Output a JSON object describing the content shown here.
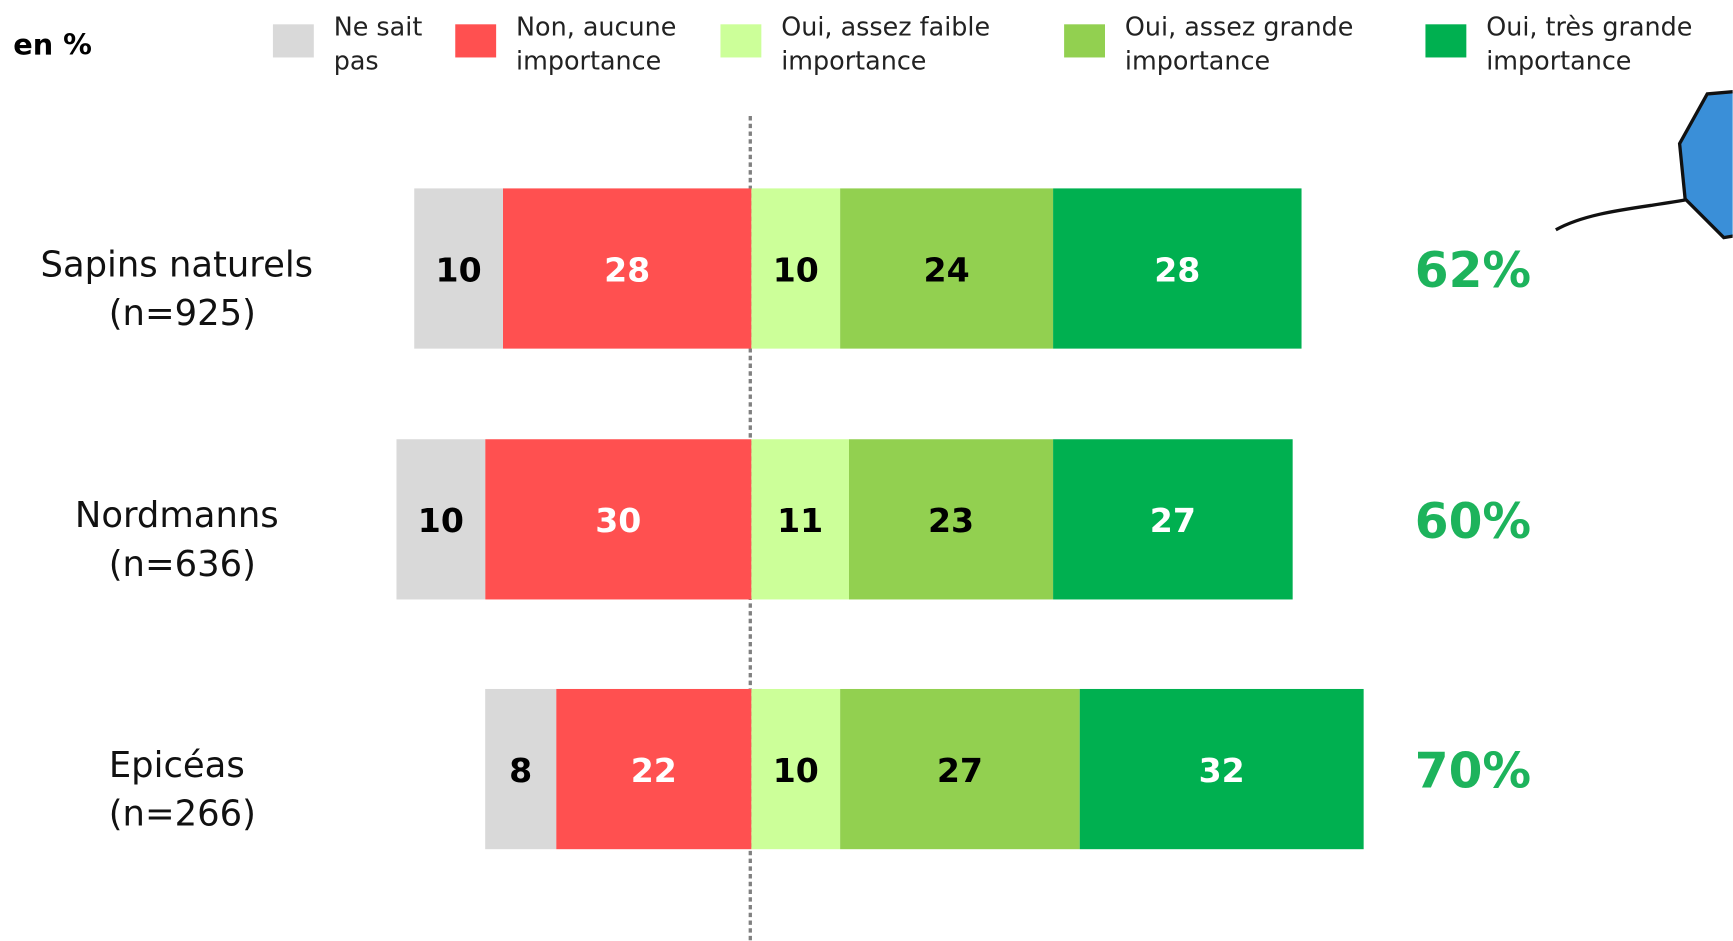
{
  "chart_data": {
    "type": "diverging-bar",
    "unit_label": "en %",
    "categories": [
      "Sapins naturels",
      "Nordmanns",
      "Epicéas"
    ],
    "sample_sizes": [
      "(n=925)",
      "(n=636)",
      "(n=266)"
    ],
    "series": [
      {
        "name": "Ne sait pas",
        "color": "#d9d9d9",
        "label_color": "#000000",
        "side": "negative",
        "values": [
          10,
          10,
          8
        ]
      },
      {
        "name": "Non, aucune importance",
        "color": "#ff5050",
        "label_color": "#ffffff",
        "side": "negative",
        "values": [
          28,
          30,
          22
        ]
      },
      {
        "name": "Oui, assez faible importance",
        "color": "#ccff99",
        "label_color": "#000000",
        "side": "positive",
        "values": [
          10,
          11,
          10
        ]
      },
      {
        "name": "Oui, assez grande importance",
        "color": "#92d050",
        "label_color": "#000000",
        "side": "positive",
        "values": [
          24,
          23,
          27
        ]
      },
      {
        "name": "Oui, très grande importance",
        "color": "#00b050",
        "label_color": "#ffffff",
        "side": "positive",
        "values": [
          28,
          27,
          32
        ]
      }
    ],
    "totals": {
      "color": "#1db35c",
      "values": [
        62,
        60,
        70
      ],
      "value_labels": [
        "62%",
        "60%",
        "70%"
      ]
    }
  }
}
